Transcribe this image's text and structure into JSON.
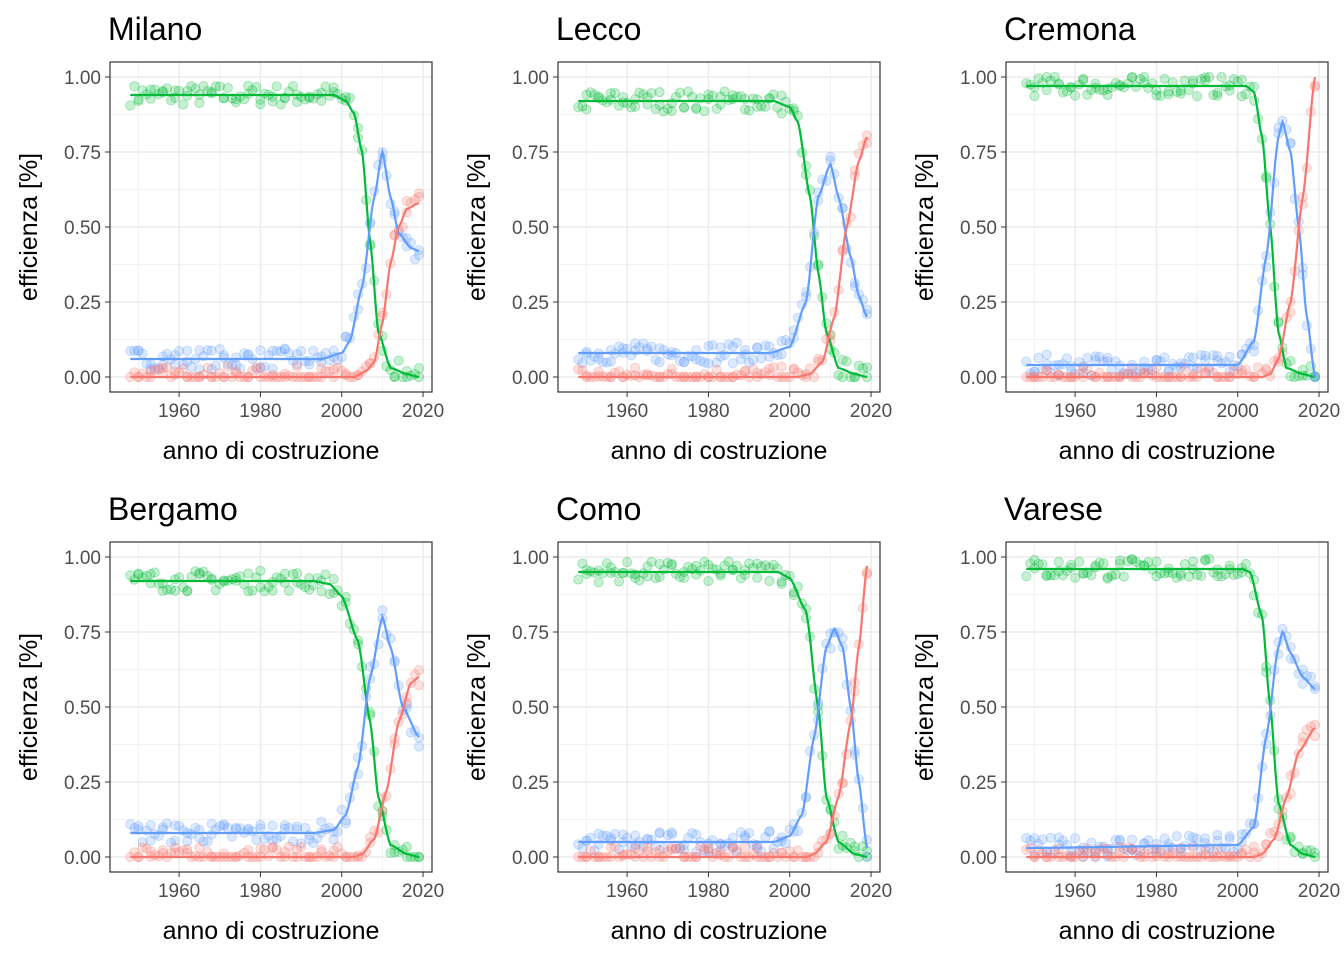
{
  "chart_data": {
    "type": "line",
    "layout": "facet 2x3",
    "xlabel": "anno di costruzione",
    "ylabel": "efficienza [%]",
    "xlim": [
      1943,
      2022.2
    ],
    "ylim": [
      -0.05,
      1.05
    ],
    "xticks": [
      1960,
      1980,
      2000,
      2020
    ],
    "xtick_labels": [
      "1960",
      "1980",
      "2000",
      "2020"
    ],
    "yticks": [
      0,
      0.25,
      0.5,
      0.75,
      1
    ],
    "ytick_labels": [
      "0.00",
      "0.25",
      "0.50",
      "0.75",
      "1.00"
    ],
    "grid": true,
    "colors": {
      "green": "#00BA38",
      "blue": "#619CFF",
      "red": "#F8766D"
    },
    "panels": [
      {
        "title": "Milano",
        "series": [
          {
            "color": "green",
            "x": [
              1948,
              1998,
              2001,
              2003,
              2005,
              2007,
              2009,
              2012,
              2016,
              2019
            ],
            "y": [
              0.94,
              0.94,
              0.92,
              0.88,
              0.75,
              0.45,
              0.15,
              0.03,
              0.01,
              0.0
            ]
          },
          {
            "color": "blue",
            "x": [
              1948,
              1995,
              2000,
              2002,
              2005,
              2008,
              2010,
              2012,
              2014,
              2017,
              2019
            ],
            "y": [
              0.06,
              0.06,
              0.08,
              0.12,
              0.3,
              0.6,
              0.75,
              0.6,
              0.48,
              0.43,
              0.42
            ]
          },
          {
            "color": "red",
            "x": [
              1948,
              2003,
              2006,
              2008,
              2010,
              2012,
              2014,
              2016,
              2019
            ],
            "y": [
              0.0,
              0.0,
              0.02,
              0.05,
              0.18,
              0.38,
              0.5,
              0.56,
              0.58
            ]
          }
        ]
      },
      {
        "title": "Lecco",
        "series": [
          {
            "color": "green",
            "x": [
              1948,
              1996,
              2000,
              2002,
              2005,
              2007,
              2009,
              2012,
              2016,
              2019
            ],
            "y": [
              0.92,
              0.92,
              0.9,
              0.85,
              0.6,
              0.35,
              0.15,
              0.03,
              0.01,
              0.0
            ]
          },
          {
            "color": "blue",
            "x": [
              1948,
              1995,
              2000,
              2004,
              2007,
              2010,
              2012,
              2015,
              2017,
              2019
            ],
            "y": [
              0.08,
              0.08,
              0.1,
              0.25,
              0.6,
              0.71,
              0.6,
              0.4,
              0.27,
              0.2
            ]
          },
          {
            "color": "red",
            "x": [
              1948,
              2002,
              2005,
              2008,
              2011,
              2014,
              2017,
              2019
            ],
            "y": [
              0.0,
              0.0,
              0.01,
              0.05,
              0.2,
              0.5,
              0.72,
              0.8
            ]
          }
        ]
      },
      {
        "title": "Cremona",
        "series": [
          {
            "color": "green",
            "x": [
              1948,
              2002,
              2004,
              2006,
              2008,
              2010,
              2012,
              2016,
              2019
            ],
            "y": [
              0.97,
              0.97,
              0.95,
              0.8,
              0.5,
              0.15,
              0.03,
              0.01,
              0.0
            ]
          },
          {
            "color": "blue",
            "x": [
              1948,
              2000,
              2004,
              2007,
              2010,
              2011,
              2013,
              2015,
              2017,
              2019
            ],
            "y": [
              0.04,
              0.04,
              0.12,
              0.4,
              0.8,
              0.85,
              0.75,
              0.5,
              0.2,
              0.0
            ]
          },
          {
            "color": "red",
            "x": [
              1948,
              2006,
              2008,
              2010,
              2013,
              2016,
              2019
            ],
            "y": [
              0.0,
              0.0,
              0.01,
              0.06,
              0.25,
              0.6,
              1.0
            ]
          }
        ]
      },
      {
        "title": "Bergamo",
        "series": [
          {
            "color": "green",
            "x": [
              1948,
              1993,
              1997,
              2000,
              2004,
              2007,
              2009,
              2012,
              2016,
              2019
            ],
            "y": [
              0.92,
              0.92,
              0.91,
              0.87,
              0.72,
              0.45,
              0.2,
              0.04,
              0.01,
              0.0
            ]
          },
          {
            "color": "blue",
            "x": [
              1948,
              1993,
              1998,
              2001,
              2004,
              2007,
              2010,
              2012,
              2015,
              2019
            ],
            "y": [
              0.08,
              0.08,
              0.09,
              0.14,
              0.3,
              0.6,
              0.8,
              0.7,
              0.5,
              0.4
            ]
          },
          {
            "color": "red",
            "x": [
              1948,
              2003,
              2005,
              2008,
              2011,
              2014,
              2017,
              2019
            ],
            "y": [
              0.0,
              0.0,
              0.01,
              0.06,
              0.22,
              0.45,
              0.58,
              0.6
            ]
          }
        ]
      },
      {
        "title": "Como",
        "series": [
          {
            "color": "green",
            "x": [
              1948,
              1997,
              2000,
              2004,
              2007,
              2009,
              2012,
              2016,
              2019
            ],
            "y": [
              0.95,
              0.95,
              0.93,
              0.82,
              0.5,
              0.2,
              0.05,
              0.01,
              0.0
            ]
          },
          {
            "color": "blue",
            "x": [
              1948,
              1996,
              2000,
              2003,
              2006,
              2009,
              2011,
              2013,
              2015,
              2017,
              2019
            ],
            "y": [
              0.05,
              0.05,
              0.07,
              0.14,
              0.4,
              0.7,
              0.76,
              0.7,
              0.5,
              0.25,
              0.03
            ]
          },
          {
            "color": "red",
            "x": [
              1948,
              2004,
              2006,
              2009,
              2012,
              2015,
              2017,
              2019
            ],
            "y": [
              0.0,
              0.0,
              0.01,
              0.05,
              0.2,
              0.45,
              0.7,
              0.97
            ]
          }
        ]
      },
      {
        "title": "Varese",
        "series": [
          {
            "color": "green",
            "x": [
              1948,
              2001,
              2003,
              2006,
              2008,
              2010,
              2013,
              2016,
              2019
            ],
            "y": [
              0.96,
              0.96,
              0.95,
              0.8,
              0.5,
              0.18,
              0.04,
              0.01,
              0.0
            ]
          },
          {
            "color": "blue",
            "x": [
              1948,
              2000,
              2004,
              2007,
              2010,
              2011,
              2013,
              2016,
              2019
            ],
            "y": [
              0.03,
              0.04,
              0.1,
              0.4,
              0.7,
              0.75,
              0.68,
              0.6,
              0.56
            ]
          },
          {
            "color": "red",
            "x": [
              1948,
              2004,
              2006,
              2009,
              2012,
              2015,
              2019
            ],
            "y": [
              0.0,
              0.0,
              0.01,
              0.06,
              0.2,
              0.35,
              0.43
            ]
          }
        ]
      }
    ]
  }
}
